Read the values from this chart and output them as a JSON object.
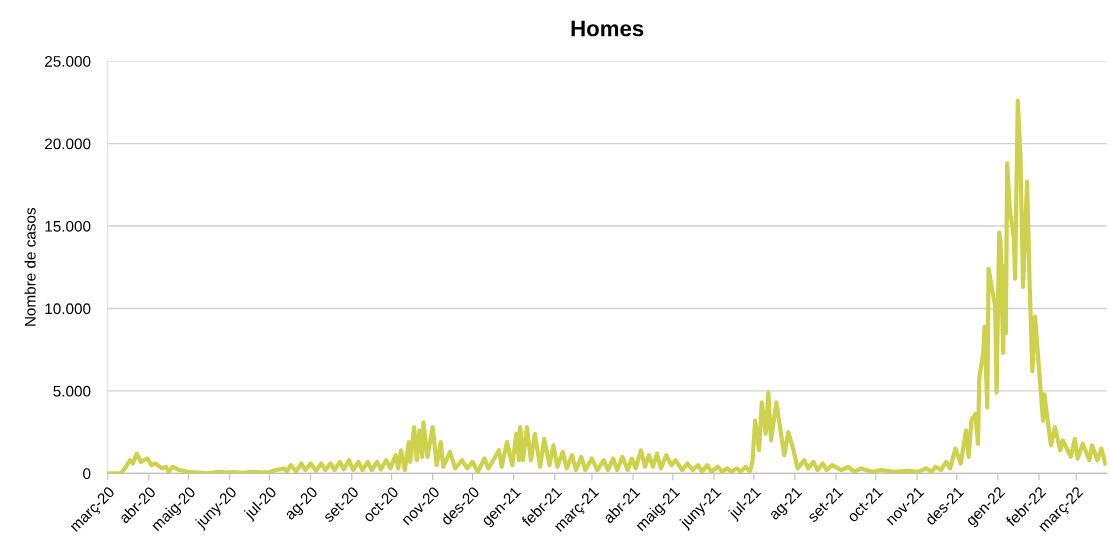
{
  "chart_data": {
    "type": "line",
    "title": "Homes",
    "ylabel": "Nombre de casos",
    "x": [
      "2020-03-01",
      "2020-03-11",
      "2020-03-14",
      "2020-03-18",
      "2020-03-20",
      "2020-03-23",
      "2020-03-26",
      "2020-03-31",
      "2020-04-03",
      "2020-04-06",
      "2020-04-11",
      "2020-04-14",
      "2020-04-16",
      "2020-04-19",
      "2020-04-24",
      "2020-04-30",
      "2020-05-08",
      "2020-05-15",
      "2020-05-24",
      "2020-05-28",
      "2020-06-05",
      "2020-06-10",
      "2020-06-20",
      "2020-06-25",
      "2020-07-01",
      "2020-07-06",
      "2020-07-12",
      "2020-07-14",
      "2020-07-17",
      "2020-07-21",
      "2020-07-25",
      "2020-07-28",
      "2020-08-01",
      "2020-08-05",
      "2020-08-09",
      "2020-08-12",
      "2020-08-16",
      "2020-08-19",
      "2020-08-23",
      "2020-08-26",
      "2020-08-30",
      "2020-09-02",
      "2020-09-06",
      "2020-09-09",
      "2020-09-13",
      "2020-09-16",
      "2020-09-20",
      "2020-09-23",
      "2020-09-27",
      "2020-09-30",
      "2020-10-04",
      "2020-10-06",
      "2020-10-08",
      "2020-10-11",
      "2020-10-14",
      "2020-10-15",
      "2020-10-18",
      "2020-10-20",
      "2020-10-22",
      "2020-10-24",
      "2020-10-25",
      "2020-10-28",
      "2020-11-01",
      "2020-11-04",
      "2020-11-07",
      "2020-11-09",
      "2020-11-14",
      "2020-11-18",
      "2020-11-23",
      "2020-11-27",
      "2020-12-01",
      "2020-12-05",
      "2020-12-10",
      "2020-12-13",
      "2020-12-21",
      "2020-12-23",
      "2020-12-27",
      "2020-12-31",
      "2021-01-03",
      "2021-01-05",
      "2021-01-06",
      "2021-01-08",
      "2021-01-11",
      "2021-01-14",
      "2021-01-17",
      "2021-01-21",
      "2021-01-24",
      "2021-01-28",
      "2021-01-31",
      "2021-02-03",
      "2021-02-07",
      "2021-02-10",
      "2021-02-14",
      "2021-02-17",
      "2021-02-21",
      "2021-02-24",
      "2021-03-01",
      "2021-03-05",
      "2021-03-10",
      "2021-03-13",
      "2021-03-17",
      "2021-03-20",
      "2021-03-24",
      "2021-03-28",
      "2021-03-31",
      "2021-04-03",
      "2021-04-07",
      "2021-04-10",
      "2021-04-13",
      "2021-04-16",
      "2021-04-19",
      "2021-04-22",
      "2021-04-26",
      "2021-04-30",
      "2021-05-03",
      "2021-05-08",
      "2021-05-12",
      "2021-05-16",
      "2021-05-20",
      "2021-05-23",
      "2021-05-27",
      "2021-05-30",
      "2021-06-04",
      "2021-06-07",
      "2021-06-11",
      "2021-06-14",
      "2021-06-18",
      "2021-06-21",
      "2021-06-25",
      "2021-06-28",
      "2021-06-30",
      "2021-07-02",
      "2021-07-05",
      "2021-07-07",
      "2021-07-10",
      "2021-07-12",
      "2021-07-14",
      "2021-07-18",
      "2021-07-24",
      "2021-07-27",
      "2021-07-31",
      "2021-08-03",
      "2021-08-08",
      "2021-08-11",
      "2021-08-15",
      "2021-08-18",
      "2021-08-22",
      "2021-08-25",
      "2021-08-29",
      "2021-09-05",
      "2021-09-10",
      "2021-09-15",
      "2021-09-20",
      "2021-09-28",
      "2021-10-05",
      "2021-10-15",
      "2021-10-25",
      "2021-11-02",
      "2021-11-08",
      "2021-11-12",
      "2021-11-15",
      "2021-11-19",
      "2021-11-23",
      "2021-11-26",
      "2021-11-30",
      "2021-12-04",
      "2021-12-08",
      "2021-12-10",
      "2021-12-12",
      "2021-12-15",
      "2021-12-17",
      "2021-12-18",
      "2021-12-21",
      "2021-12-22",
      "2021-12-24",
      "2021-12-25",
      "2021-12-30",
      "2021-12-31",
      "2022-01-02",
      "2022-01-03",
      "2022-01-05",
      "2022-01-06",
      "2022-01-07",
      "2022-01-08",
      "2022-01-10",
      "2022-01-13",
      "2022-01-14",
      "2022-01-16",
      "2022-01-18",
      "2022-01-20",
      "2022-01-23",
      "2022-01-25",
      "2022-01-27",
      "2022-01-29",
      "2022-02-04",
      "2022-02-05",
      "2022-02-10",
      "2022-02-13",
      "2022-02-17",
      "2022-02-19",
      "2022-02-25",
      "2022-02-28",
      "2022-03-02",
      "2022-03-06",
      "2022-03-11",
      "2022-03-13",
      "2022-03-17",
      "2022-03-20",
      "2022-03-23"
    ],
    "series": [
      {
        "color": "#cdd14b",
        "values": [
          0,
          0,
          300,
          800,
          600,
          1200,
          700,
          900,
          500,
          600,
          300,
          400,
          100,
          400,
          200,
          100,
          50,
          0,
          100,
          50,
          80,
          30,
          100,
          50,
          80,
          200,
          300,
          100,
          500,
          100,
          600,
          200,
          600,
          150,
          600,
          200,
          600,
          200,
          700,
          250,
          800,
          200,
          700,
          200,
          700,
          200,
          700,
          250,
          800,
          300,
          1100,
          300,
          1400,
          200,
          1900,
          700,
          2800,
          800,
          2600,
          1000,
          3100,
          1000,
          2800,
          500,
          1900,
          400,
          1300,
          300,
          800,
          300,
          700,
          100,
          900,
          300,
          1400,
          400,
          1900,
          500,
          2400,
          800,
          2800,
          800,
          2800,
          800,
          2400,
          400,
          2100,
          500,
          1700,
          400,
          1300,
          300,
          1100,
          200,
          1000,
          200,
          900,
          200,
          800,
          200,
          900,
          200,
          1000,
          200,
          900,
          300,
          1400,
          400,
          1100,
          400,
          1200,
          300,
          1100,
          500,
          800,
          200,
          600,
          200,
          500,
          100,
          500,
          100,
          400,
          100,
          300,
          100,
          300,
          100,
          400,
          100,
          700,
          3200,
          1400,
          4300,
          2400,
          4900,
          2000,
          4300,
          1100,
          2500,
          1400,
          300,
          800,
          300,
          700,
          200,
          600,
          200,
          500,
          200,
          400,
          100,
          300,
          100,
          200,
          100,
          150,
          100,
          300,
          100,
          400,
          200,
          700,
          300,
          1500,
          600,
          2600,
          1000,
          3200,
          3600,
          1800,
          5800,
          7300,
          8900,
          4000,
          12400,
          10100,
          4900,
          14600,
          14000,
          7300,
          12600,
          8500,
          18800,
          16000,
          14300,
          11800,
          22600,
          19200,
          11300,
          17700,
          11300,
          6200,
          9500,
          3200,
          4800,
          1700,
          2800,
          1400,
          2000,
          1000,
          2100,
          900,
          1800,
          800,
          1700,
          800,
          1500,
          600
        ]
      }
    ],
    "xlim": [
      "2020-03-01",
      "2022-03-24"
    ],
    "xticks": [
      {
        "value": "2020-03-01",
        "label": "març-20"
      },
      {
        "value": "2020-04-01",
        "label": "abr-20"
      },
      {
        "value": "2020-05-01",
        "label": "maig-20"
      },
      {
        "value": "2020-06-01",
        "label": "juny-20"
      },
      {
        "value": "2020-07-01",
        "label": "jul-20"
      },
      {
        "value": "2020-08-01",
        "label": "ag-20"
      },
      {
        "value": "2020-09-01",
        "label": "set-20"
      },
      {
        "value": "2020-10-01",
        "label": "oct-20"
      },
      {
        "value": "2020-11-01",
        "label": "nov-20"
      },
      {
        "value": "2020-12-01",
        "label": "des-20"
      },
      {
        "value": "2021-01-01",
        "label": "gen-21"
      },
      {
        "value": "2021-02-01",
        "label": "febr-21"
      },
      {
        "value": "2021-03-01",
        "label": "març-21"
      },
      {
        "value": "2021-04-01",
        "label": "abr-21"
      },
      {
        "value": "2021-05-01",
        "label": "maig-21"
      },
      {
        "value": "2021-06-01",
        "label": "juny-21"
      },
      {
        "value": "2021-07-01",
        "label": "jul-21"
      },
      {
        "value": "2021-08-01",
        "label": "ag-21"
      },
      {
        "value": "2021-09-01",
        "label": "set-21"
      },
      {
        "value": "2021-10-01",
        "label": "oct-21"
      },
      {
        "value": "2021-11-01",
        "label": "nov-21"
      },
      {
        "value": "2021-12-01",
        "label": "des-21"
      },
      {
        "value": "2022-01-01",
        "label": "gen-22"
      },
      {
        "value": "2022-02-01",
        "label": "febr-22"
      },
      {
        "value": "2022-03-01",
        "label": "març-22"
      }
    ],
    "ylim": [
      0,
      25000
    ],
    "yticks": [
      0,
      {
        "value": 5000,
        "label": "5.000"
      },
      {
        "value": 10000,
        "label": "10.000"
      },
      {
        "value": 15000,
        "label": "15.000"
      },
      {
        "value": 20000,
        "label": "20.000"
      },
      {
        "value": 25000,
        "label": "25.000"
      }
    ],
    "grid": "y",
    "line_style": "solid"
  }
}
